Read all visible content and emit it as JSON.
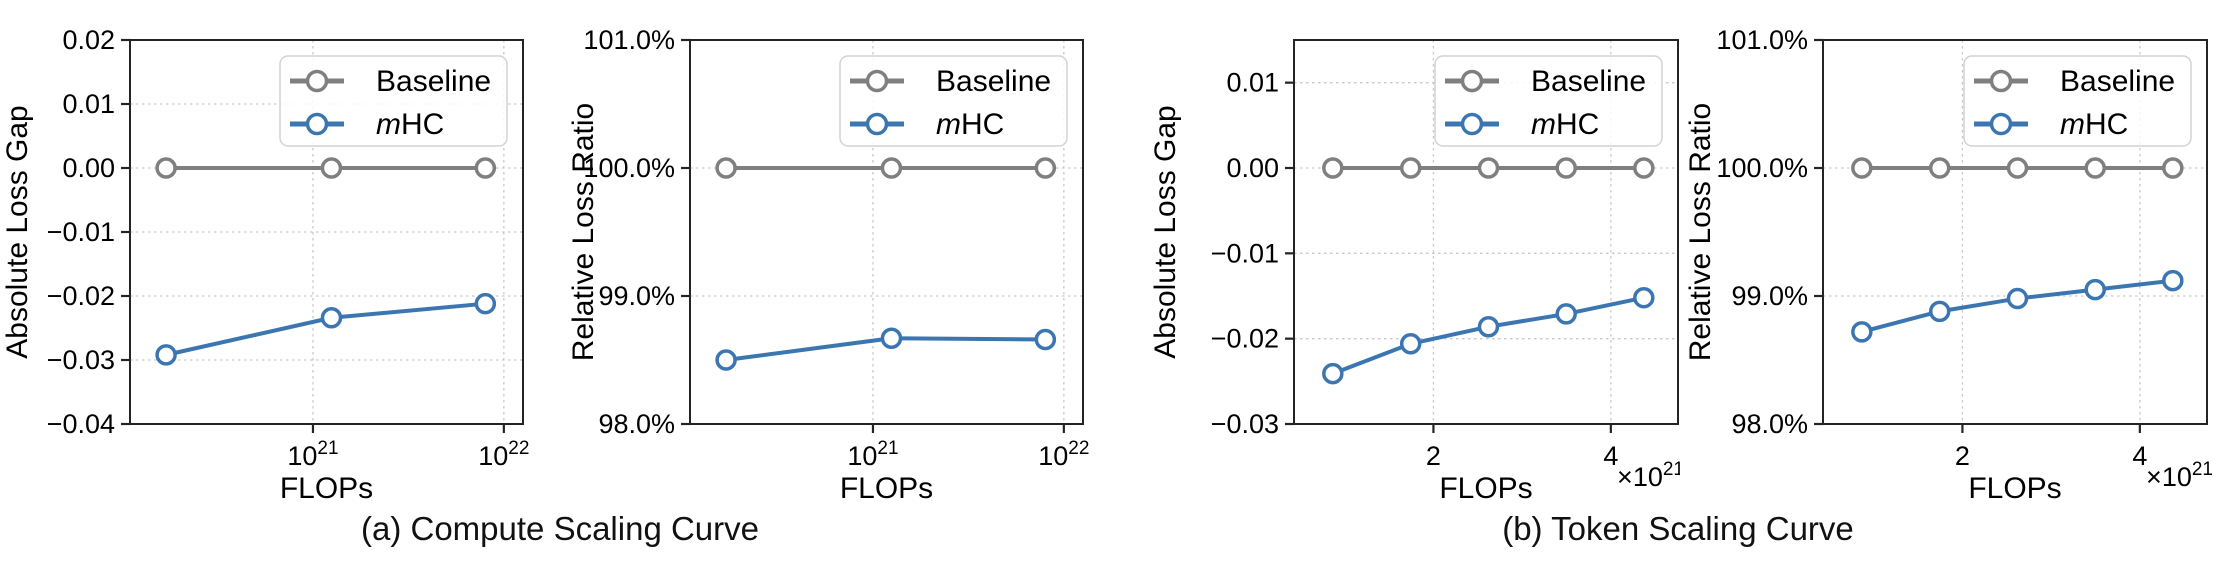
{
  "figure": {
    "captions": [
      {
        "id": "a",
        "label": "(a) Compute Scaling Curve"
      },
      {
        "id": "b",
        "label": "(b) Token Scaling Curve"
      }
    ]
  },
  "colors": {
    "baseline": "#7f7f7f",
    "mhc": "#3b76b1",
    "grid": "#c9c9c9",
    "spine": "#242424",
    "text": "#000000",
    "legend_border": "#d2d2d2",
    "legend_bg": "rgba(255,255,255,0.85)"
  },
  "chart_data": [
    {
      "type": "line",
      "panel": "compute",
      "ylabel": "Absolute Loss Gap",
      "xlabel": "FLOPs",
      "xscale": "log",
      "xlim": [
        1.1e+20,
        1.26e+22
      ],
      "ylim": [
        -0.04,
        0.02
      ],
      "grid": true,
      "legend_position": "upper right",
      "xticks": [
        {
          "v": 1e+21,
          "label": "10^21"
        },
        {
          "v": 1e+22,
          "label": "10^22"
        }
      ],
      "yticks": [
        {
          "v": 0.02,
          "label": "0.02"
        },
        {
          "v": 0.01,
          "label": "0.01"
        },
        {
          "v": 0.0,
          "label": "0.00"
        },
        {
          "v": -0.01,
          "label": "−0.01"
        },
        {
          "v": -0.02,
          "label": "−0.02"
        },
        {
          "v": -0.03,
          "label": "−0.03"
        },
        {
          "v": -0.04,
          "label": "−0.04"
        }
      ],
      "x_offset_label": "",
      "legend": [
        {
          "label": "Baseline",
          "italic_prefix": "",
          "series": "Baseline"
        },
        {
          "label": "HC",
          "italic_prefix": "m",
          "series": "mHC"
        }
      ],
      "series": [
        {
          "name": "Baseline",
          "color": "baseline",
          "x": [
            1.7e+20,
            1.25e+21,
            8e+21
          ],
          "y": [
            0,
            0,
            0
          ]
        },
        {
          "name": "mHC",
          "color": "mhc",
          "x": [
            1.7e+20,
            1.25e+21,
            8e+21
          ],
          "y": [
            -0.0292,
            -0.0234,
            -0.0212
          ]
        }
      ]
    },
    {
      "type": "line",
      "panel": "compute",
      "ylabel": "Relative Loss Ratio",
      "xlabel": "FLOPs",
      "xscale": "log",
      "xlim": [
        1.1e+20,
        1.26e+22
      ],
      "ylim": [
        98.0,
        101.0
      ],
      "grid": true,
      "legend_position": "upper right",
      "xticks": [
        {
          "v": 1e+21,
          "label": "10^21"
        },
        {
          "v": 1e+22,
          "label": "10^22"
        }
      ],
      "yticks": [
        {
          "v": 101.0,
          "label": "101.0%"
        },
        {
          "v": 100.0,
          "label": "100.0%"
        },
        {
          "v": 99.0,
          "label": "99.0%"
        },
        {
          "v": 98.0,
          "label": "98.0%"
        }
      ],
      "x_offset_label": "",
      "legend": [
        {
          "label": "Baseline",
          "italic_prefix": "",
          "series": "Baseline"
        },
        {
          "label": "HC",
          "italic_prefix": "m",
          "series": "mHC"
        }
      ],
      "series": [
        {
          "name": "Baseline",
          "color": "baseline",
          "x": [
            1.7e+20,
            1.25e+21,
            8e+21
          ],
          "y": [
            100.0,
            100.0,
            100.0
          ]
        },
        {
          "name": "mHC",
          "color": "mhc",
          "x": [
            1.7e+20,
            1.25e+21,
            8e+21
          ],
          "y": [
            98.5,
            98.67,
            98.66
          ]
        }
      ]
    },
    {
      "type": "line",
      "panel": "token",
      "ylabel": "Absolute Loss Gap",
      "xlabel": "FLOPs",
      "xscale": "log",
      "xlim": [
        1.16e+21,
        5.2e+21
      ],
      "ylim": [
        -0.03,
        0.015
      ],
      "grid": true,
      "legend_position": "upper right",
      "xticks": [
        {
          "v": 2e+21,
          "label": "2"
        },
        {
          "v": 4e+21,
          "label": "4"
        }
      ],
      "yticks": [
        {
          "v": 0.01,
          "label": "0.01"
        },
        {
          "v": 0.0,
          "label": "0.00"
        },
        {
          "v": -0.01,
          "label": "−0.01"
        },
        {
          "v": -0.02,
          "label": "−0.02"
        },
        {
          "v": -0.03,
          "label": "−0.03"
        }
      ],
      "x_offset_label": "×10^21",
      "legend": [
        {
          "label": "Baseline",
          "italic_prefix": "",
          "series": "Baseline"
        },
        {
          "label": "HC",
          "italic_prefix": "m",
          "series": "mHC"
        }
      ],
      "series": [
        {
          "name": "Baseline",
          "color": "baseline",
          "x": [
            1.35e+21,
            1.83e+21,
            2.48e+21,
            3.36e+21,
            4.55e+21
          ],
          "y": [
            0,
            0,
            0,
            0,
            0
          ]
        },
        {
          "name": "mHC",
          "color": "mhc",
          "x": [
            1.35e+21,
            1.83e+21,
            2.48e+21,
            3.36e+21,
            4.55e+21
          ],
          "y": [
            -0.0241,
            -0.0206,
            -0.0186,
            -0.0171,
            -0.0152
          ]
        }
      ]
    },
    {
      "type": "line",
      "panel": "token",
      "ylabel": "Relative Loss Ratio",
      "xlabel": "FLOPs",
      "xscale": "log",
      "xlim": [
        1.16e+21,
        5.2e+21
      ],
      "ylim": [
        98.0,
        101.0
      ],
      "grid": true,
      "legend_position": "upper right",
      "xticks": [
        {
          "v": 2e+21,
          "label": "2"
        },
        {
          "v": 4e+21,
          "label": "4"
        }
      ],
      "yticks": [
        {
          "v": 101.0,
          "label": "101.0%"
        },
        {
          "v": 100.0,
          "label": "100.0%"
        },
        {
          "v": 99.0,
          "label": "99.0%"
        },
        {
          "v": 98.0,
          "label": "98.0%"
        }
      ],
      "x_offset_label": "×10^21",
      "legend": [
        {
          "label": "Baseline",
          "italic_prefix": "",
          "series": "Baseline"
        },
        {
          "label": "HC",
          "italic_prefix": "m",
          "series": "mHC"
        }
      ],
      "series": [
        {
          "name": "Baseline",
          "color": "baseline",
          "x": [
            1.35e+21,
            1.83e+21,
            2.48e+21,
            3.36e+21,
            4.55e+21
          ],
          "y": [
            100.0,
            100.0,
            100.0,
            100.0,
            100.0
          ]
        },
        {
          "name": "mHC",
          "color": "mhc",
          "x": [
            1.35e+21,
            1.83e+21,
            2.48e+21,
            3.36e+21,
            4.55e+21
          ],
          "y": [
            98.72,
            98.88,
            98.98,
            99.05,
            99.12
          ]
        }
      ]
    }
  ]
}
